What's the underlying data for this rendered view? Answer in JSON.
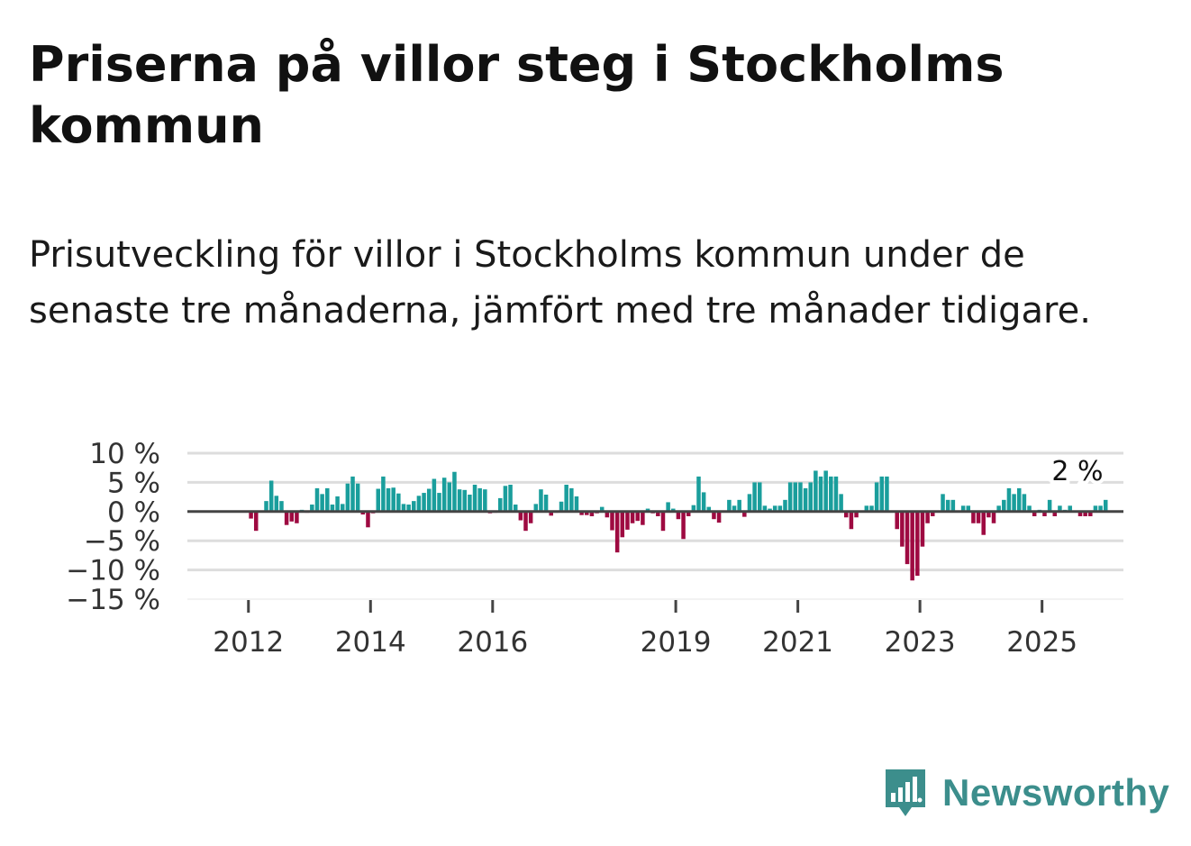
{
  "title": "Priserna på villor steg i Stockholms kommun",
  "subtitle": "Prisutveckling för villor i Stockholms kommun under de senaste tre månaderna, jämfört med tre månader tidigare.",
  "brand": {
    "name": "Newsworthy",
    "color": "#3c8e8c",
    "icon": "bar-chart-speech-bubble-icon"
  },
  "colors": {
    "positive": "#1a9e9c",
    "negative": "#9e0a41",
    "grid": "#dddddd",
    "zero_line": "#444444"
  },
  "chart_data": {
    "type": "bar",
    "title": "Priserna på villor steg i Stockholms kommun",
    "xlabel": "",
    "ylabel": "",
    "ylim": [
      -15,
      10
    ],
    "y_ticks": [
      10,
      5,
      0,
      -5,
      -10,
      -15
    ],
    "y_tick_labels": [
      "10 %",
      "5 %",
      "0 %",
      "−5 %",
      "−10 %",
      "−15 %"
    ],
    "x_ticks": [
      {
        "label": "2012",
        "year": 2012
      },
      {
        "label": "2014",
        "year": 2014
      },
      {
        "label": "2016",
        "year": 2016
      },
      {
        "label": "2019",
        "year": 2019
      },
      {
        "label": "2021",
        "year": 2021
      },
      {
        "label": "2023",
        "year": 2023
      },
      {
        "label": "2025",
        "year": 2025
      }
    ],
    "start": {
      "year": 2011,
      "month": 1
    },
    "x_range_months": [
      0,
      184
    ],
    "annotation": "2 %",
    "values": [
      null,
      null,
      null,
      null,
      null,
      null,
      null,
      null,
      null,
      null,
      null,
      null,
      -1.2,
      -3.3,
      0.2,
      1.8,
      5.3,
      2.7,
      1.8,
      -2.3,
      -1.7,
      -2.0,
      0.3,
      -0.2,
      1.2,
      4.0,
      3.0,
      4.0,
      1.2,
      2.6,
      1.3,
      4.8,
      6.0,
      4.8,
      -0.5,
      -2.7,
      -0.3,
      3.9,
      6.0,
      4.0,
      4.1,
      3.1,
      1.3,
      1.2,
      1.8,
      2.7,
      3.2,
      3.9,
      5.6,
      3.2,
      5.8,
      5.0,
      6.8,
      3.8,
      3.7,
      2.9,
      4.6,
      4.0,
      3.8,
      -0.3,
      -0.2,
      2.3,
      4.4,
      4.6,
      1.2,
      -1.5,
      -3.3,
      -2.0,
      1.3,
      3.8,
      2.9,
      -0.7,
      -0.2,
      1.7,
      4.6,
      4.0,
      2.6,
      -0.6,
      -0.6,
      -0.8,
      -0.3,
      0.8,
      -1.0,
      -3.2,
      -7.0,
      -4.4,
      -3.1,
      -2.0,
      -1.6,
      -2.3,
      0.5,
      -0.3,
      -0.8,
      -3.3,
      1.6,
      0.5,
      -1.3,
      -4.7,
      -0.8,
      1.1,
      6.0,
      3.3,
      0.8,
      -1.3,
      -1.9,
      0.2,
      2.0,
      1.0,
      2.0,
      -0.9,
      3.0,
      5.0,
      5.0,
      1.0,
      0.5,
      1.0,
      1.0,
      2.0,
      5.0,
      5.0,
      5.0,
      4.0,
      5.0,
      7.0,
      6.0,
      7.0,
      6.0,
      6.0,
      3.0,
      -1.0,
      -3.0,
      -1.0,
      0.2,
      1.0,
      1.0,
      5.0,
      6.0,
      6.0,
      0.2,
      -3.0,
      -6.0,
      -9.0,
      -11.8,
      -11.0,
      -6.0,
      -2.0,
      -0.8,
      0.2,
      3.0,
      2.0,
      2.0,
      0.2,
      1.0,
      1.0,
      -2.0,
      -2.0,
      -4.0,
      -1.0,
      -2.0,
      1.0,
      2.0,
      4.0,
      3.0,
      4.0,
      3.0,
      1.0,
      -0.8,
      0.3,
      -0.8,
      2.0,
      -0.8,
      1.0,
      0.3,
      1.0,
      0.2,
      -0.8,
      -0.8,
      -0.8,
      1.0,
      1.0,
      2.0
    ]
  }
}
